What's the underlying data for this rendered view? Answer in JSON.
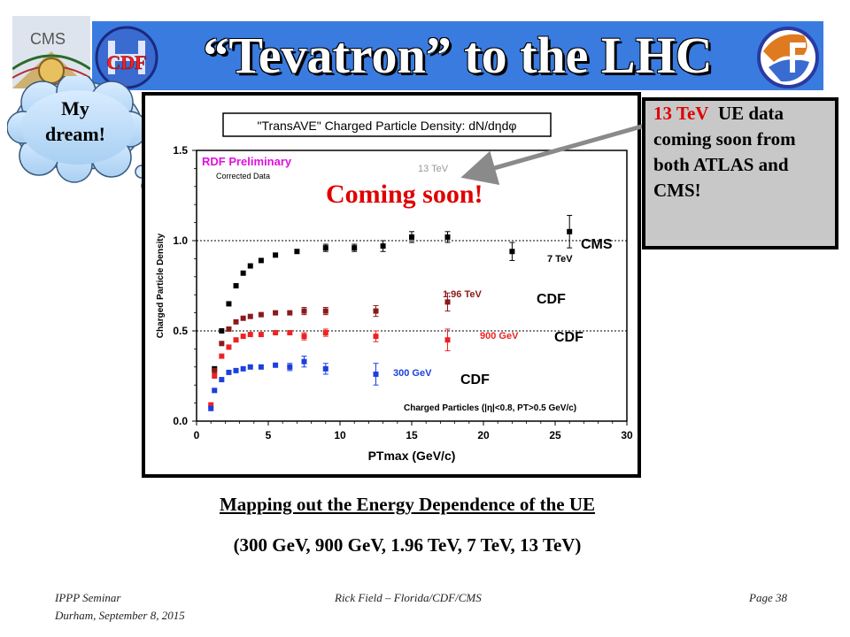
{
  "header": {
    "title": "“Tevatron” to the LHC"
  },
  "logos": {
    "cms": "CMS",
    "cdf": "CDF"
  },
  "thought": {
    "line1": "My",
    "line2": "dream!"
  },
  "callout": {
    "red": "13 TeV",
    "text": "UE data coming soon from both ATLAS and CMS!"
  },
  "caption": {
    "line1": "Mapping out the Energy Dependence of the UE",
    "line2": "(300 GeV, 900 GeV, 1.96 TeV, 7 TeV, 13 TeV)"
  },
  "footer": {
    "left1": "IPPP Seminar",
    "left2": "Durham, September 8, 2015",
    "center": "Rick Field – Florida/CDF/CMS",
    "right": "Page 38"
  },
  "colors": {
    "title_bar": "#3a7be0",
    "s7tev": "#000000",
    "s196": "#8b1a1a",
    "s900": "#ee2222",
    "s300": "#1c3fdd",
    "coming": "#e00000",
    "arrow": "#8a8a8a"
  },
  "chart_data": {
    "type": "scatter",
    "title": "\"TransAVE\" Charged Particle Density: dN/dηdφ",
    "xlabel": "PTmax (GeV/c)",
    "ylabel": "Charged Particle Density",
    "xlim": [
      0,
      30
    ],
    "ylim": [
      0,
      1.5
    ],
    "xticks": [
      "0",
      "5",
      "10",
      "15",
      "20",
      "25",
      "30"
    ],
    "yticks": [
      "0.0",
      "0.5",
      "1.0",
      "1.5"
    ],
    "reference_lines": [
      0.5,
      1.0
    ],
    "annotations": {
      "preliminary": "RDF Preliminary",
      "corrected": "Corrected Data",
      "coming_soon": "Coming  soon!",
      "tev13": "13 TeV",
      "cuts": "Charged Particles (|η|<0.8, PT>0.5 GeV/c)"
    },
    "series": [
      {
        "name": "7 TeV",
        "experiment": "CMS",
        "color": "#000000",
        "points": [
          [
            1.25,
            0.29
          ],
          [
            1.75,
            0.5
          ],
          [
            2.25,
            0.65
          ],
          [
            2.75,
            0.75
          ],
          [
            3.25,
            0.82
          ],
          [
            3.75,
            0.86
          ],
          [
            4.5,
            0.89
          ],
          [
            5.5,
            0.92
          ],
          [
            7.0,
            0.94
          ],
          [
            9.0,
            0.96
          ],
          [
            11.0,
            0.96
          ],
          [
            13.0,
            0.97
          ],
          [
            15.0,
            1.02
          ],
          [
            17.5,
            1.02
          ],
          [
            22.0,
            0.94
          ],
          [
            26.0,
            1.05
          ]
        ],
        "err": [
          0.01,
          0.01,
          0.01,
          0.01,
          0.01,
          0.01,
          0.01,
          0.01,
          0.01,
          0.02,
          0.02,
          0.03,
          0.03,
          0.03,
          0.05,
          0.09
        ]
      },
      {
        "name": "1.96 TeV",
        "experiment": "CDF",
        "color": "#8b1a1a",
        "points": [
          [
            1.25,
            0.28
          ],
          [
            1.75,
            0.43
          ],
          [
            2.25,
            0.51
          ],
          [
            2.75,
            0.55
          ],
          [
            3.25,
            0.57
          ],
          [
            3.75,
            0.58
          ],
          [
            4.5,
            0.59
          ],
          [
            5.5,
            0.6
          ],
          [
            6.5,
            0.6
          ],
          [
            7.5,
            0.61
          ],
          [
            9.0,
            0.61
          ],
          [
            12.5,
            0.61
          ],
          [
            17.5,
            0.66
          ]
        ],
        "err": [
          0.01,
          0.01,
          0.01,
          0.01,
          0.01,
          0.01,
          0.01,
          0.01,
          0.01,
          0.02,
          0.02,
          0.03,
          0.05
        ]
      },
      {
        "name": "900 GeV",
        "experiment": "CDF",
        "color": "#ee2222",
        "points": [
          [
            1.0,
            0.09
          ],
          [
            1.25,
            0.25
          ],
          [
            1.75,
            0.36
          ],
          [
            2.25,
            0.41
          ],
          [
            2.75,
            0.45
          ],
          [
            3.25,
            0.47
          ],
          [
            3.75,
            0.48
          ],
          [
            4.5,
            0.48
          ],
          [
            5.5,
            0.49
          ],
          [
            6.5,
            0.49
          ],
          [
            7.5,
            0.47
          ],
          [
            9.0,
            0.49
          ],
          [
            12.5,
            0.47
          ],
          [
            17.5,
            0.45
          ]
        ],
        "err": [
          0.01,
          0.01,
          0.01,
          0.01,
          0.01,
          0.01,
          0.01,
          0.01,
          0.01,
          0.01,
          0.02,
          0.02,
          0.03,
          0.06
        ]
      },
      {
        "name": "300 GeV",
        "experiment": "CDF",
        "color": "#1c3fdd",
        "points": [
          [
            1.0,
            0.07
          ],
          [
            1.25,
            0.17
          ],
          [
            1.75,
            0.23
          ],
          [
            2.25,
            0.27
          ],
          [
            2.75,
            0.28
          ],
          [
            3.25,
            0.29
          ],
          [
            3.75,
            0.3
          ],
          [
            4.5,
            0.3
          ],
          [
            5.5,
            0.31
          ],
          [
            6.5,
            0.3
          ],
          [
            7.5,
            0.33
          ],
          [
            9.0,
            0.29
          ],
          [
            12.5,
            0.26
          ]
        ],
        "err": [
          0.01,
          0.01,
          0.01,
          0.01,
          0.01,
          0.01,
          0.01,
          0.01,
          0.01,
          0.02,
          0.03,
          0.03,
          0.06
        ]
      }
    ]
  }
}
